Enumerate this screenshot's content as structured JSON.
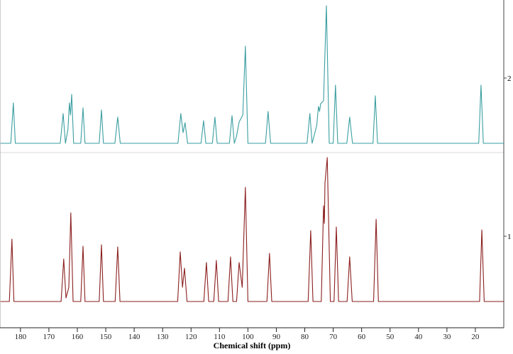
{
  "chart_data": {
    "type": "line",
    "x_label": "Chemical shift (ppm)",
    "xlim": [
      187.2,
      10
    ],
    "xticks": [
      180,
      170,
      160,
      150,
      140,
      130,
      120,
      110,
      100,
      90,
      80,
      70,
      60,
      50,
      40,
      30,
      20
    ],
    "series": [
      {
        "name": "1",
        "color": "#8b1e1e",
        "x": [
          187,
          183.9,
          183.0,
          182.3,
          165.7,
          164.8,
          164.0,
          163.0,
          162.3,
          161.5,
          158.8,
          158.0,
          157.3,
          152.3,
          151.5,
          150.8,
          146.7,
          145.8,
          145.0,
          124.7,
          123.8,
          123.0,
          122.3,
          121.4,
          115.5,
          114.6,
          113.8,
          112.0,
          111.1,
          110.3,
          107.0,
          106.1,
          105.3,
          104.0,
          103.1,
          102.0,
          100.9,
          100.0,
          93.3,
          92.4,
          91.6,
          78.8,
          77.9,
          77.1,
          74.2,
          73.4,
          73.1,
          72.9,
          72.1,
          71.0,
          69.7,
          68.9,
          68.1,
          65.1,
          64.2,
          63.3,
          55.8,
          54.9,
          54.1,
          18.5,
          17.7,
          16.9,
          10
        ],
        "values": [
          0,
          0,
          88,
          0,
          0,
          60,
          5,
          20,
          125,
          0,
          0,
          78,
          0,
          0,
          80,
          0,
          0,
          77,
          0,
          0,
          70,
          20,
          47,
          0,
          0,
          55,
          0,
          0,
          58,
          0,
          0,
          63,
          0,
          0,
          55,
          20,
          161,
          0,
          0,
          68,
          0,
          0,
          100,
          0,
          0,
          135,
          110,
          167,
          203,
          0,
          0,
          105,
          0,
          0,
          63,
          0,
          0,
          116,
          0,
          0,
          101,
          0,
          0
        ]
      },
      {
        "name": "2",
        "color": "#3a9ea0",
        "x": [
          187,
          183.4,
          182.5,
          181.8,
          166.0,
          165.0,
          164.2,
          163.3,
          162.8,
          162.4,
          162.0,
          161.3,
          158.8,
          158.0,
          157.3,
          152.3,
          151.5,
          150.8,
          146.8,
          145.8,
          144.9,
          124.6,
          123.6,
          122.8,
          122.1,
          121.2,
          116.5,
          115.6,
          114.8,
          112.5,
          111.6,
          110.8,
          106.5,
          105.6,
          104.8,
          104.0,
          103.1,
          101.8,
          100.9,
          100.0,
          93.8,
          92.9,
          92.0,
          79.2,
          78.2,
          77.4,
          75.8,
          75.2,
          74.8,
          74.4,
          73.4,
          72.4,
          71.4,
          70.0,
          69.2,
          68.4,
          65.2,
          64.2,
          63.2,
          56.0,
          55.2,
          54.4,
          18.8,
          18.0,
          17.2,
          10
        ],
        "values": [
          0,
          0,
          57,
          0,
          0,
          42,
          0,
          20,
          57,
          40,
          69,
          0,
          0,
          50,
          0,
          0,
          47,
          0,
          0,
          37,
          0,
          0,
          42,
          15,
          29,
          0,
          0,
          32,
          0,
          0,
          37,
          0,
          0,
          39,
          0,
          10,
          30,
          40,
          137,
          0,
          0,
          45,
          0,
          0,
          42,
          0,
          25,
          52,
          45,
          56,
          60,
          194,
          0,
          0,
          82,
          0,
          0,
          37,
          0,
          0,
          67,
          0,
          0,
          82,
          0,
          0
        ]
      }
    ]
  }
}
